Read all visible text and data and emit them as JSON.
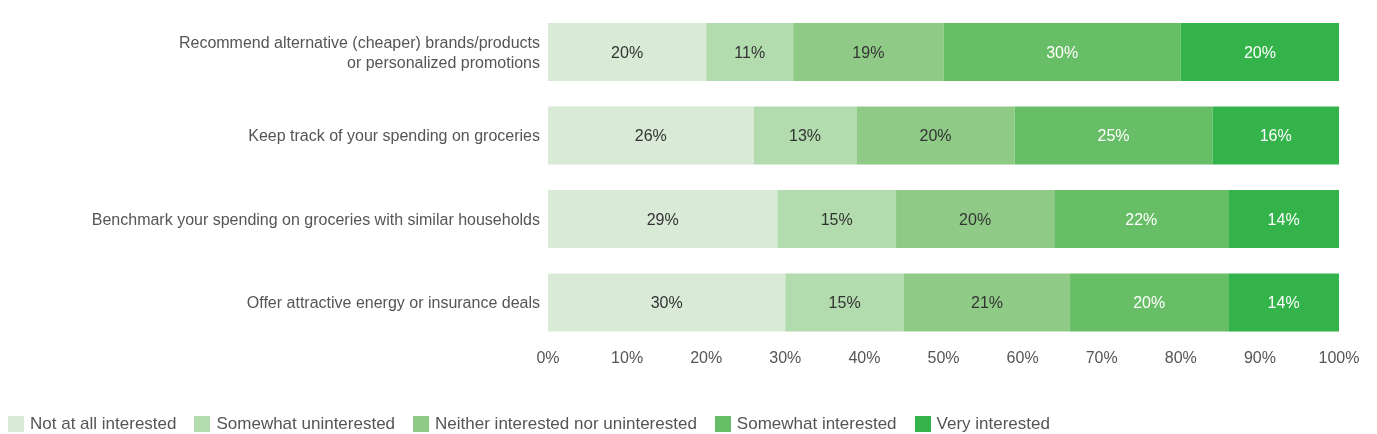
{
  "chart_data": {
    "type": "bar",
    "orientation": "horizontal",
    "stacked": true,
    "categories": [
      "Recommend alternative (cheaper) brands/products or personalized promotions",
      "Keep track of your spending on groceries",
      "Benchmark your spending on groceries with similar households",
      "Offer attractive energy or insurance deals"
    ],
    "series": [
      {
        "name": "Not at all interested",
        "color": "#d9ebd7",
        "values": [
          20,
          26,
          29,
          30
        ],
        "value_labels": [
          "20%",
          "26%",
          "29%",
          "30%"
        ]
      },
      {
        "name": "Somewhat uninterested",
        "color": "#b3dcae",
        "values": [
          11,
          13,
          15,
          15
        ],
        "value_labels": [
          "11%",
          "13%",
          "15%",
          "15%"
        ]
      },
      {
        "name": "Neither interested nor uninterested",
        "color": "#8fcb87",
        "values": [
          19,
          20,
          20,
          21
        ],
        "value_labels": [
          "19%",
          "20%",
          "20%",
          "21%"
        ]
      },
      {
        "name": "Somewhat interested",
        "color": "#68be67",
        "values": [
          30,
          25,
          22,
          20
        ],
        "value_labels": [
          "30%",
          "25%",
          "22%",
          "20%"
        ]
      },
      {
        "name": "Very interested",
        "color": "#33b34a",
        "values": [
          20,
          16,
          14,
          14
        ],
        "value_labels": [
          "20%",
          "16%",
          "14%",
          "14%"
        ]
      }
    ],
    "xlim": [
      0,
      100
    ],
    "xticks": [
      {
        "value": 0,
        "label": "0%"
      },
      {
        "value": 10,
        "label": "10%"
      },
      {
        "value": 20,
        "label": "20%"
      },
      {
        "value": 30,
        "label": "30%"
      },
      {
        "value": 40,
        "label": "40%"
      },
      {
        "value": 50,
        "label": "50%"
      },
      {
        "value": 60,
        "label": "60%"
      },
      {
        "value": 70,
        "label": "70%"
      },
      {
        "value": 80,
        "label": "80%"
      },
      {
        "value": 90,
        "label": "90%"
      },
      {
        "value": 100,
        "label": "100%"
      }
    ],
    "grid": false,
    "legend": "bottom left"
  }
}
